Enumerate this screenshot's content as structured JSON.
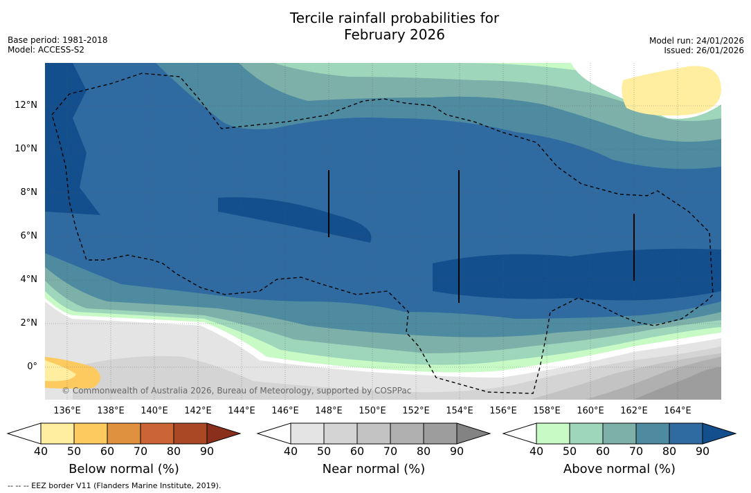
{
  "title": {
    "line1": "Tercile rainfall probabilities for",
    "line2": "February 2026"
  },
  "meta_left": {
    "base_period": "Base period: 1981-2018",
    "model": "Model: ACCESS-S2"
  },
  "meta_right": {
    "model_run": "Model run: 24/01/2026",
    "issued": "Issued: 26/01/2026"
  },
  "map": {
    "lat_labels": [
      "12°N",
      "10°N",
      "8°N",
      "6°N",
      "4°N",
      "2°N",
      "0°"
    ],
    "lon_labels": [
      "136°E",
      "138°E",
      "140°E",
      "142°E",
      "144°E",
      "146°E",
      "148°E",
      "150°E",
      "152°E",
      "154°E",
      "156°E",
      "158°E",
      "160°E",
      "162°E",
      "164°E"
    ],
    "copyright": "© Commonwealth of Australia 2026, Bureau of Meteorology, supported by COSPPac",
    "icon": "eez-border-dashed-line"
  },
  "colorbars": {
    "below": {
      "title": "Below normal (%)",
      "ticks": [
        "40",
        "50",
        "60",
        "70",
        "80",
        "90"
      ],
      "colors": [
        "#ffeea0",
        "#fdca60",
        "#e09140",
        "#cb6535",
        "#aa4725",
        "#8a2f1c"
      ]
    },
    "near": {
      "title": "Near normal (%)",
      "ticks": [
        "40",
        "50",
        "60",
        "70",
        "80",
        "90"
      ],
      "colors": [
        "#e4e4e4",
        "#d4d4d4",
        "#c3c3c3",
        "#b0b0b0",
        "#9d9d9d",
        "#838383"
      ]
    },
    "above": {
      "title": "Above normal (%)",
      "ticks": [
        "40",
        "50",
        "60",
        "70",
        "80",
        "90"
      ],
      "colors": [
        "#c8fac6",
        "#9dd6bb",
        "#7db0a8",
        "#4e8aa0",
        "#2f6aa0",
        "#134f8d"
      ]
    }
  },
  "footer": "--  --  -- EEZ border V11 (Flanders Marine Institute, 2019)."
}
